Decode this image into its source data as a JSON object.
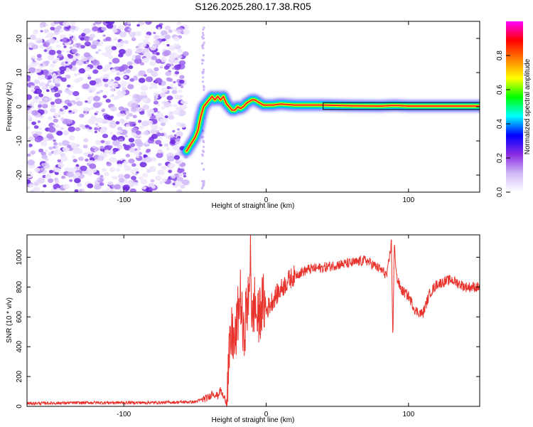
{
  "chart_data": [
    {
      "type": "heatmap",
      "title": "S126.2025.280.17.38.R05",
      "xlabel": "Height of straight line (km)",
      "ylabel": "Frequency (Hz)",
      "xlim": [
        -168,
        150
      ],
      "ylim": [
        -25,
        25
      ],
      "xticks": [
        -100,
        0,
        100
      ],
      "xtick_labels": [
        "-100",
        "0",
        "100"
      ],
      "yticks": [
        -20,
        -10,
        0,
        10,
        20
      ],
      "ytick_labels": [
        "-20",
        "-10",
        "0",
        "10",
        "20"
      ],
      "noise_region_x": [
        -168,
        -56
      ],
      "signal_track": {
        "x": [
          -56,
          -53,
          -50,
          -48,
          -46,
          -44,
          -42,
          -40,
          -38,
          -36,
          -34,
          -32,
          -30,
          -28,
          -26,
          -24,
          -22,
          -20,
          -18,
          -16,
          -14,
          -12,
          -10,
          -8,
          -6,
          -4,
          -2,
          0,
          5,
          10,
          20,
          40,
          60,
          80,
          90,
          100,
          110,
          150
        ],
        "y": [
          -13,
          -11,
          -9,
          -7,
          -3,
          0,
          1,
          2,
          3,
          2,
          3,
          2,
          3,
          1,
          0,
          -1,
          -1,
          0,
          -0.5,
          0,
          1,
          1.5,
          2,
          2,
          1.5,
          1,
          0.5,
          0.5,
          0.5,
          0.8,
          0.5,
          0.5,
          0.3,
          0.2,
          0.4,
          0.2,
          0.2,
          0.2
        ]
      },
      "colorbar": {
        "label": "Normalized spectral amplitude",
        "range": [
          0.0,
          1.0
        ],
        "ticks": [
          0.0,
          0.2,
          0.4,
          0.6,
          0.8
        ],
        "tick_labels": [
          "0.0",
          "0.2",
          "0.4",
          "0.6",
          "0.8"
        ],
        "colors": [
          "#ffffff",
          "#d0b8f8",
          "#8a2be2",
          "#0000ff",
          "#00ffff",
          "#00ff00",
          "#ffff00",
          "#ff8000",
          "#ff0000",
          "#ff00ff"
        ]
      }
    },
    {
      "type": "line",
      "xlabel": "Height of straight line (km)",
      "ylabel": "SNR (10 * v/v)",
      "xlim": [
        -168,
        150
      ],
      "ylim": [
        0,
        1150
      ],
      "xticks": [
        -100,
        0,
        100
      ],
      "xtick_labels": [
        "-100",
        "0",
        "100"
      ],
      "yticks": [
        0,
        200,
        400,
        600,
        800,
        1000
      ],
      "ytick_labels": [
        "0",
        "200",
        "400",
        "600",
        "800",
        "1000"
      ],
      "series": [
        {
          "name": "SNR",
          "color": "#e8322c",
          "x": [
            -168,
            -120,
            -80,
            -50,
            -44,
            -40,
            -38,
            -36,
            -34,
            -32,
            -30,
            -28,
            -26,
            -24,
            -22,
            -20,
            -18,
            -16,
            -14,
            -12,
            -11,
            -10,
            -9,
            -8,
            -6,
            -4,
            -2,
            0,
            5,
            10,
            15,
            20,
            30,
            40,
            50,
            60,
            70,
            75,
            80,
            85,
            88,
            89,
            90,
            92,
            95,
            100,
            105,
            110,
            115,
            120,
            130,
            140,
            150
          ],
          "y": [
            20,
            25,
            25,
            30,
            50,
            60,
            90,
            80,
            70,
            110,
            60,
            40,
            300,
            500,
            400,
            600,
            750,
            420,
            650,
            700,
            1150,
            500,
            650,
            700,
            560,
            650,
            700,
            640,
            720,
            780,
            840,
            880,
            920,
            930,
            950,
            960,
            980,
            950,
            920,
            880,
            1100,
            450,
            1080,
            850,
            780,
            740,
            640,
            620,
            760,
            820,
            850,
            800,
            800
          ]
        }
      ]
    }
  ]
}
